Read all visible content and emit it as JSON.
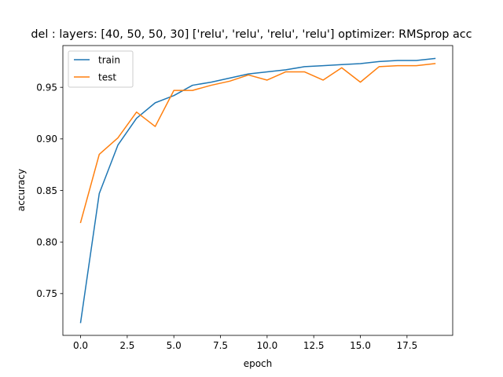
{
  "chart_data": {
    "type": "line",
    "title": "del : layers: [40, 50, 50, 30] ['relu', 'relu', 'relu', 'relu'] optimizer: RMSprop acc",
    "xlabel": "epoch",
    "ylabel": "accuracy",
    "xlim": [
      -0.95,
      19.95
    ],
    "ylim": [
      0.7095,
      0.9905
    ],
    "x_ticks": [
      0.0,
      2.5,
      5.0,
      7.5,
      10.0,
      12.5,
      15.0,
      17.5
    ],
    "x_tick_labels": [
      "0.0",
      "2.5",
      "5.0",
      "7.5",
      "10.0",
      "12.5",
      "15.0",
      "17.5"
    ],
    "y_ticks": [
      0.75,
      0.8,
      0.85,
      0.9,
      0.95
    ],
    "y_tick_labels": [
      "0.75",
      "0.80",
      "0.85",
      "0.90",
      "0.95"
    ],
    "grid": false,
    "legend_position": "top-left",
    "x": [
      0,
      1,
      2,
      3,
      4,
      5,
      6,
      7,
      8,
      9,
      10,
      11,
      12,
      13,
      14,
      15,
      16,
      17,
      18,
      19
    ],
    "series": [
      {
        "name": "train",
        "color": "#1f77b4",
        "values": [
          0.722,
          0.847,
          0.894,
          0.92,
          0.935,
          0.942,
          0.952,
          0.955,
          0.959,
          0.963,
          0.965,
          0.967,
          0.97,
          0.971,
          0.972,
          0.973,
          0.975,
          0.976,
          0.976,
          0.978
        ]
      },
      {
        "name": "test",
        "color": "#ff7f0e",
        "values": [
          0.819,
          0.885,
          0.901,
          0.926,
          0.912,
          0.947,
          0.947,
          0.952,
          0.956,
          0.962,
          0.957,
          0.965,
          0.965,
          0.957,
          0.969,
          0.955,
          0.97,
          0.971,
          0.971,
          0.973
        ]
      }
    ]
  }
}
